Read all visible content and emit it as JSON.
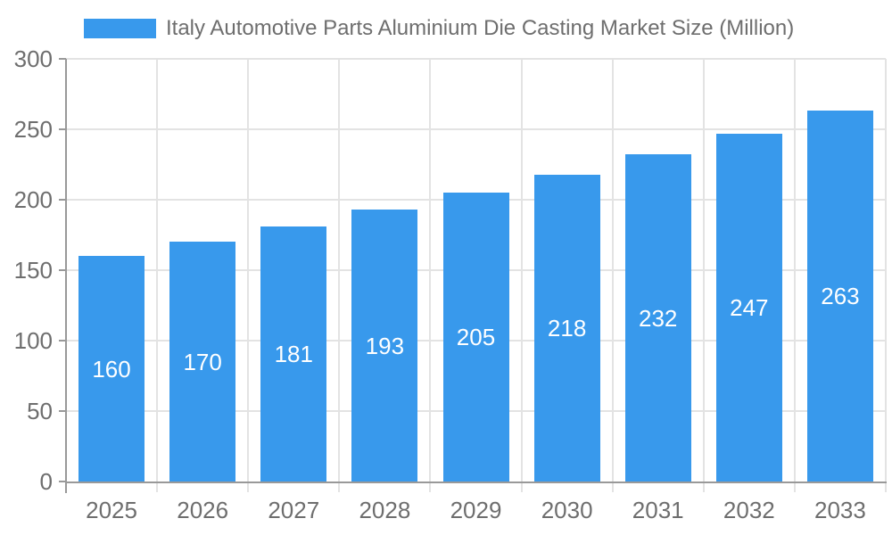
{
  "legend": {
    "label": "Italy Automotive Parts Aluminium Die Casting Market Size (Million)",
    "swatch_color": "#3899ec",
    "position": "top-left"
  },
  "chart_data": {
    "type": "bar",
    "title": "Italy Automotive Parts Aluminium Die Casting Market Size (Million)",
    "series_name": "Italy Automotive Parts Aluminium Die Casting Market Size (Million)",
    "categories": [
      "2025",
      "2026",
      "2027",
      "2028",
      "2029",
      "2030",
      "2031",
      "2032",
      "2033"
    ],
    "values": [
      160,
      170,
      181,
      193,
      205,
      218,
      232,
      247,
      263
    ],
    "xlabel": "",
    "ylabel": "",
    "ylim": [
      0,
      300
    ],
    "yticks": [
      0,
      50,
      100,
      150,
      200,
      250,
      300
    ],
    "grid": "on",
    "data_labels": "inside-center",
    "legend_position": "top-left",
    "colors": {
      "bar": "#3899ec",
      "bar_label": "#ffffff",
      "axis_text": "#6e6e6e",
      "grid_line": "#e3e3e3",
      "axis_line": "#999999",
      "background": "#ffffff"
    }
  }
}
